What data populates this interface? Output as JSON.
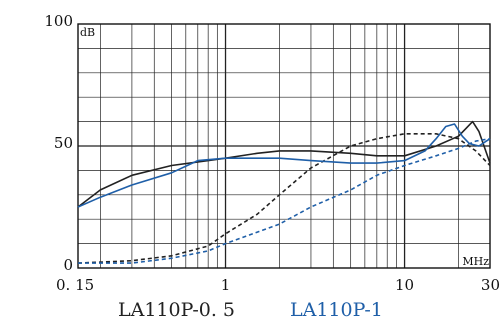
{
  "chart_data": {
    "type": "line",
    "xscale": "log",
    "xlim": [
      0.15,
      30
    ],
    "ylim": [
      0,
      100
    ],
    "y_unit_label": "dB",
    "x_unit_label": "MHz",
    "grid": true,
    "x_tick_labels": [
      {
        "value": 0.15,
        "label": "0. 15"
      },
      {
        "value": 1,
        "label": "1"
      },
      {
        "value": 10,
        "label": "10"
      },
      {
        "value": 30,
        "label": "30"
      }
    ],
    "y_tick_labels": [
      {
        "value": 0,
        "label": "0"
      },
      {
        "value": 50,
        "label": "50"
      },
      {
        "value": 100,
        "label": "100"
      }
    ],
    "legend": [
      {
        "label": "LA110P-0. 5",
        "color": "#222222"
      },
      {
        "label": "LA110P-1",
        "color": "#1f5fa8"
      }
    ],
    "series": [
      {
        "group": "LA110P-0. 5",
        "style": "solid",
        "color": "#222222",
        "points": [
          [
            0.15,
            25
          ],
          [
            0.2,
            32
          ],
          [
            0.3,
            38
          ],
          [
            0.5,
            42
          ],
          [
            0.8,
            44
          ],
          [
            1,
            45
          ],
          [
            1.5,
            47
          ],
          [
            2,
            48
          ],
          [
            3,
            48
          ],
          [
            5,
            47
          ],
          [
            7,
            46
          ],
          [
            10,
            46
          ],
          [
            15,
            50
          ],
          [
            20,
            54
          ],
          [
            24,
            60
          ],
          [
            26,
            56
          ],
          [
            30,
            43
          ]
        ]
      },
      {
        "group": "LA110P-0. 5",
        "style": "dashed",
        "color": "#222222",
        "points": [
          [
            0.15,
            2
          ],
          [
            0.3,
            3
          ],
          [
            0.5,
            5
          ],
          [
            0.8,
            9
          ],
          [
            1,
            14
          ],
          [
            1.5,
            22
          ],
          [
            2,
            30
          ],
          [
            3,
            41
          ],
          [
            5,
            50
          ],
          [
            7,
            53
          ],
          [
            10,
            55
          ],
          [
            15,
            55
          ],
          [
            20,
            53
          ],
          [
            25,
            48
          ],
          [
            30,
            42
          ]
        ]
      },
      {
        "group": "LA110P-1",
        "style": "solid",
        "color": "#1f5fa8",
        "points": [
          [
            0.15,
            25
          ],
          [
            0.2,
            29
          ],
          [
            0.3,
            34
          ],
          [
            0.5,
            39
          ],
          [
            0.7,
            44
          ],
          [
            1,
            45
          ],
          [
            2,
            45
          ],
          [
            3,
            44
          ],
          [
            5,
            43
          ],
          [
            7,
            43
          ],
          [
            10,
            44
          ],
          [
            13,
            48
          ],
          [
            15,
            53
          ],
          [
            17,
            58
          ],
          [
            19,
            59
          ],
          [
            21,
            54
          ],
          [
            23,
            51
          ],
          [
            26,
            50
          ],
          [
            30,
            53
          ]
        ]
      },
      {
        "group": "LA110P-1",
        "style": "dashed",
        "color": "#1f5fa8",
        "points": [
          [
            0.15,
            2
          ],
          [
            0.3,
            2
          ],
          [
            0.5,
            4
          ],
          [
            0.8,
            7
          ],
          [
            1,
            10
          ],
          [
            2,
            18
          ],
          [
            3,
            25
          ],
          [
            5,
            32
          ],
          [
            7,
            38
          ],
          [
            10,
            42
          ],
          [
            15,
            46
          ],
          [
            20,
            49
          ],
          [
            25,
            52
          ],
          [
            30,
            53
          ]
        ]
      }
    ]
  }
}
